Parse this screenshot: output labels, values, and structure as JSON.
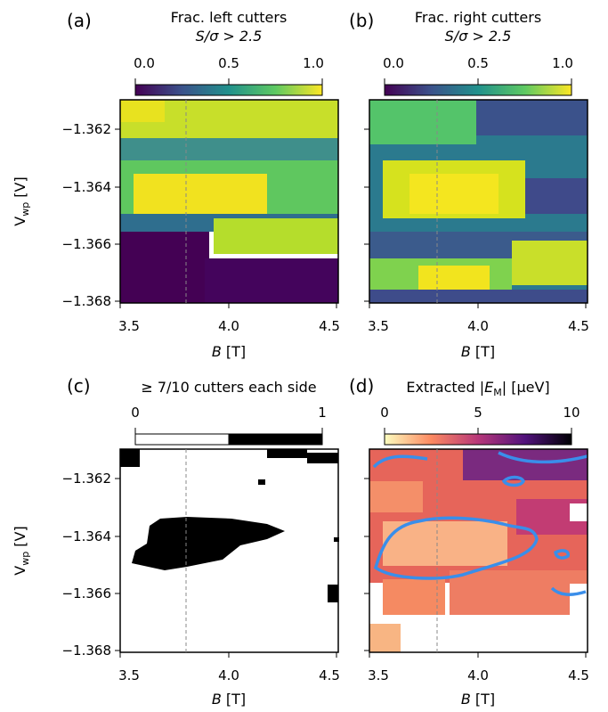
{
  "chart_data": [
    {
      "panel_label": "(a)",
      "type": "heatmap",
      "title_line1": "Frac. left cutters",
      "title_line2": "S/σ > 2.5",
      "colormap": "viridis",
      "colorbar": {
        "range": [
          0.0,
          1.0
        ],
        "ticks": [
          "0.0",
          "0.5",
          "1.0"
        ]
      },
      "xlabel": "B [T]",
      "ylabel": "V_wp [V]",
      "xlim": [
        3.5,
        4.5
      ],
      "ylim": [
        -1.368,
        -1.361
      ],
      "xticks": [
        "3.5",
        "4.0",
        "4.5"
      ],
      "yticks": [
        "−1.362",
        "−1.364",
        "−1.366",
        "−1.368"
      ],
      "marker_B": 3.8
    },
    {
      "panel_label": "(b)",
      "type": "heatmap",
      "title_line1": "Frac. right cutters",
      "title_line2": "S/σ > 2.5",
      "colormap": "viridis",
      "colorbar": {
        "range": [
          0.0,
          1.0
        ],
        "ticks": [
          "0.0",
          "0.5",
          "1.0"
        ]
      },
      "xlabel": "B [T]",
      "xlim": [
        3.5,
        4.5
      ],
      "ylim": [
        -1.368,
        -1.361
      ],
      "xticks": [
        "3.5",
        "4.0",
        "4.5"
      ],
      "marker_B": 3.8
    },
    {
      "panel_label": "(c)",
      "type": "heatmap",
      "title_line1": "≥ 7/10 cutters each side",
      "colormap": "binary",
      "colorbar": {
        "range": [
          0,
          1
        ],
        "ticks": [
          "0",
          "1"
        ]
      },
      "xlabel": "B [T]",
      "ylabel": "V_wp [V]",
      "xlim": [
        3.5,
        4.5
      ],
      "ylim": [
        -1.368,
        -1.361
      ],
      "xticks": [
        "3.5",
        "4.0",
        "4.5"
      ],
      "yticks": [
        "−1.362",
        "−1.364",
        "−1.366",
        "−1.368"
      ],
      "marker_B": 3.8
    },
    {
      "panel_label": "(d)",
      "type": "heatmap",
      "title_line1": "Extracted |E_M| [μeV]",
      "colormap": "magma_r",
      "contour_color": "#3a8eea",
      "colorbar": {
        "range": [
          0,
          10
        ],
        "ticks": [
          "0",
          "5",
          "10"
        ]
      },
      "xlabel": "B [T]",
      "xlim": [
        3.5,
        4.5
      ],
      "ylim": [
        -1.368,
        -1.361
      ],
      "xticks": [
        "3.5",
        "4.0",
        "4.5"
      ],
      "marker_B": 3.8
    }
  ]
}
